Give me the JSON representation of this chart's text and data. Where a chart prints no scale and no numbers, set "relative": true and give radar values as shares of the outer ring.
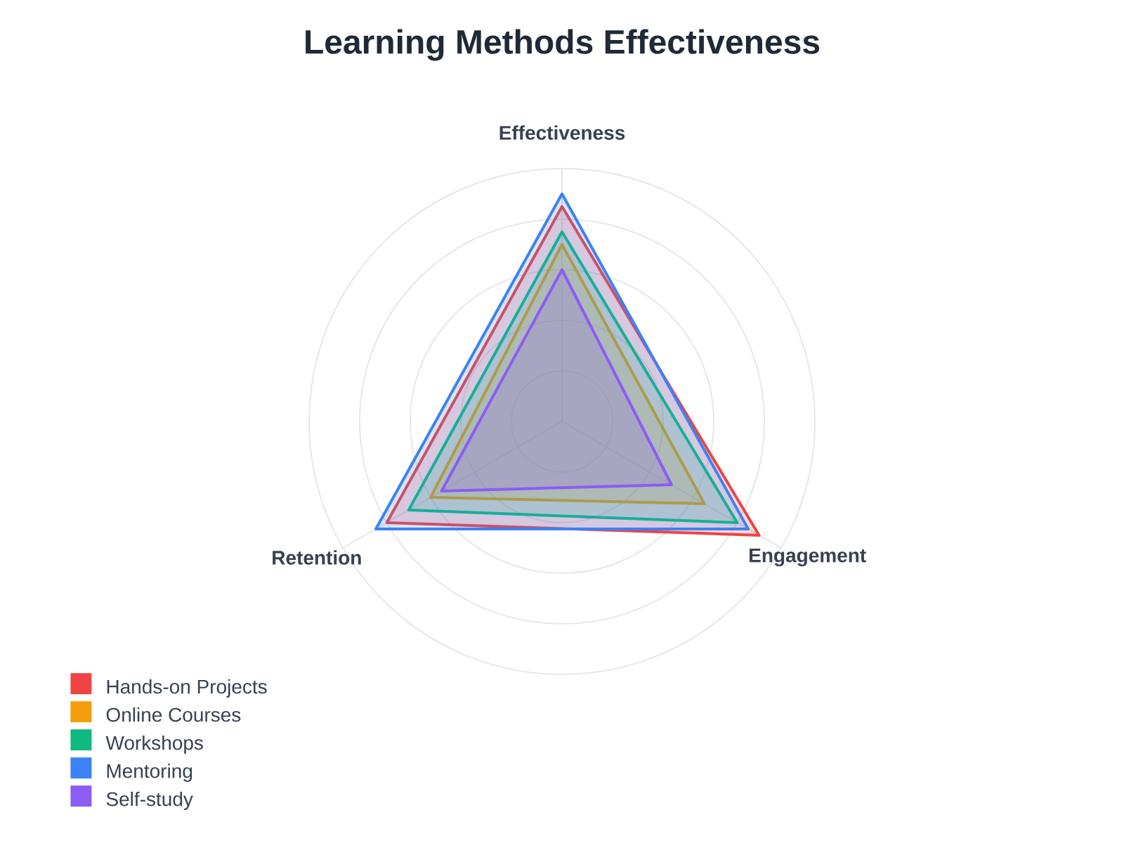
{
  "chart_data": {
    "type": "radar",
    "title": "Learning Methods Effectiveness",
    "categories": [
      "Effectiveness",
      "Engagement",
      "Retention"
    ],
    "relative": true,
    "grid": true,
    "legend": "bottom left",
    "series": [
      {
        "name": "Hands-on Projects",
        "color": "#ef4444",
        "values": [
          0.85,
          0.9,
          0.8
        ]
      },
      {
        "name": "Online Courses",
        "color": "#f59e0b",
        "values": [
          0.7,
          0.65,
          0.6
        ]
      },
      {
        "name": "Workshops",
        "color": "#10b981",
        "values": [
          0.75,
          0.8,
          0.7
        ]
      },
      {
        "name": "Mentoring",
        "color": "#3b82f6",
        "values": [
          0.9,
          0.85,
          0.85
        ]
      },
      {
        "name": "Self-study",
        "color": "#8b5cf6",
        "values": [
          0.6,
          0.5,
          0.55
        ]
      }
    ]
  }
}
